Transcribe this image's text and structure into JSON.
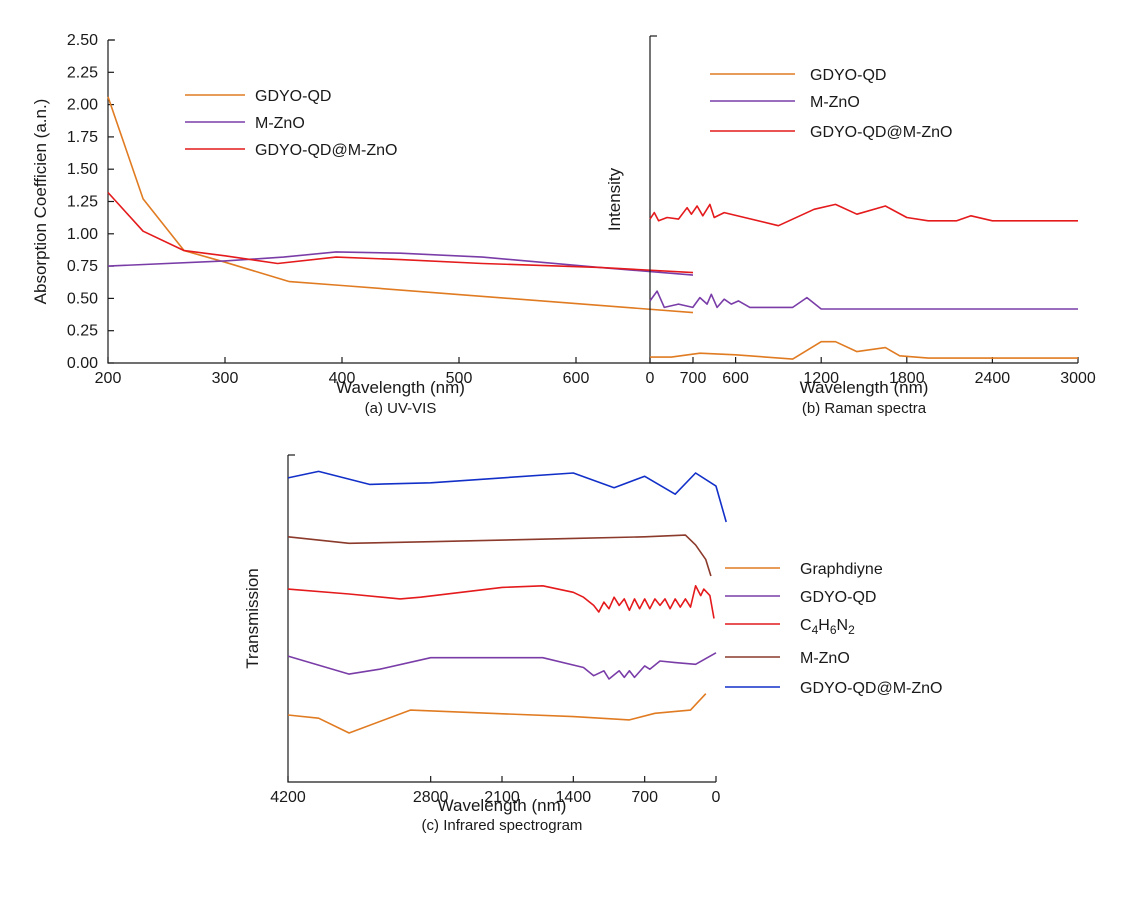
{
  "chart_data": [
    {
      "type": "line",
      "panel": "a",
      "caption": "(a) UV-VIS",
      "title": "",
      "xlabel": "Wavelength (nm)",
      "ylabel": "Absorption Coefficien (a.n.)",
      "xlim": [
        200,
        700
      ],
      "ylim": [
        0,
        2.5
      ],
      "x_ticks": [
        "200",
        "300",
        "400",
        "500",
        "600",
        "700"
      ],
      "y_ticks": [
        "0.00",
        "0.25",
        "0.50",
        "0.75",
        "1.00",
        "1.25",
        "1.50",
        "1.75",
        "2.00",
        "2.25",
        "2.50"
      ],
      "legend_position": "upper-center",
      "series": [
        {
          "name": "GDYO-QD",
          "color": "#e07b22",
          "points": [
            [
              200,
              2.06
            ],
            [
              230,
              1.27
            ],
            [
              265,
              0.87
            ],
            [
              300,
              0.78
            ],
            [
              355,
              0.63
            ],
            [
              400,
              0.6
            ],
            [
              700,
              0.39
            ]
          ]
        },
        {
          "name": "M-ZnO",
          "color": "#7a3da8",
          "points": [
            [
              200,
              0.75
            ],
            [
              300,
              0.79
            ],
            [
              350,
              0.82
            ],
            [
              395,
              0.86
            ],
            [
              450,
              0.85
            ],
            [
              520,
              0.82
            ],
            [
              620,
              0.74
            ],
            [
              700,
              0.68
            ]
          ]
        },
        {
          "name": "GDYO-QD@M-ZnO",
          "color": "#e41a1c",
          "points": [
            [
              200,
              1.32
            ],
            [
              230,
              1.02
            ],
            [
              265,
              0.87
            ],
            [
              300,
              0.83
            ],
            [
              345,
              0.77
            ],
            [
              395,
              0.82
            ],
            [
              450,
              0.8
            ],
            [
              520,
              0.77
            ],
            [
              620,
              0.74
            ],
            [
              700,
              0.7
            ]
          ]
        }
      ]
    },
    {
      "type": "line",
      "panel": "b",
      "caption": "(b) Raman spectra",
      "title": "",
      "xlabel": "Wavelength (nm)",
      "ylabel": "Intensity",
      "xlim": [
        0,
        3000
      ],
      "ylim": [
        0,
        10
      ],
      "x_ticks": [
        "0",
        "600",
        "1200",
        "1800",
        "2400",
        "3000"
      ],
      "legend_position": "upper-center",
      "series": [
        {
          "name": "GDYO-QD",
          "color": "#e07b22",
          "points": [
            [
              0,
              0.18
            ],
            [
              150,
              0.18
            ],
            [
              350,
              0.3
            ],
            [
              600,
              0.25
            ],
            [
              1000,
              0.12
            ],
            [
              1200,
              0.65
            ],
            [
              1300,
              0.65
            ],
            [
              1450,
              0.35
            ],
            [
              1650,
              0.47
            ],
            [
              1750,
              0.22
            ],
            [
              1950,
              0.15
            ],
            [
              3000,
              0.15
            ]
          ]
        },
        {
          "name": "M-ZnO",
          "color": "#7a3da8",
          "points": [
            [
              0,
              1.9
            ],
            [
              50,
              2.2
            ],
            [
              100,
              1.7
            ],
            [
              200,
              1.8
            ],
            [
              300,
              1.7
            ],
            [
              350,
              2.0
            ],
            [
              400,
              1.8
            ],
            [
              430,
              2.1
            ],
            [
              470,
              1.7
            ],
            [
              520,
              1.95
            ],
            [
              570,
              1.8
            ],
            [
              620,
              1.9
            ],
            [
              700,
              1.7
            ],
            [
              800,
              1.7
            ],
            [
              1000,
              1.7
            ],
            [
              1100,
              2.0
            ],
            [
              1200,
              1.65
            ],
            [
              3000,
              1.65
            ]
          ]
        },
        {
          "name": "GDYO-QD@M-ZnO",
          "color": "#e41a1c",
          "points": [
            [
              0,
              4.4
            ],
            [
              30,
              4.6
            ],
            [
              60,
              4.35
            ],
            [
              120,
              4.45
            ],
            [
              200,
              4.4
            ],
            [
              260,
              4.75
            ],
            [
              290,
              4.55
            ],
            [
              330,
              4.8
            ],
            [
              370,
              4.5
            ],
            [
              420,
              4.85
            ],
            [
              450,
              4.45
            ],
            [
              520,
              4.6
            ],
            [
              900,
              4.2
            ],
            [
              1150,
              4.7
            ],
            [
              1300,
              4.85
            ],
            [
              1450,
              4.55
            ],
            [
              1650,
              4.8
            ],
            [
              1800,
              4.45
            ],
            [
              1950,
              4.35
            ],
            [
              2150,
              4.35
            ],
            [
              2250,
              4.5
            ],
            [
              2400,
              4.35
            ],
            [
              3000,
              4.35
            ]
          ]
        }
      ]
    },
    {
      "type": "line",
      "panel": "c",
      "caption": "(c) Infrared spectrogram",
      "title": "",
      "xlabel": "Wavelength (nm)",
      "ylabel": "Transmission",
      "xlim": [
        4200,
        0
      ],
      "ylim": [
        0,
        10
      ],
      "x_ticks": [
        "4200",
        "2800",
        "2100",
        "1400",
        "700",
        "0"
      ],
      "legend_position": "right",
      "series": [
        {
          "name": "Graphdiyne",
          "label_base": "Graphdiyne",
          "label_sub": [],
          "color": "#e07b22",
          "points": [
            [
              4200,
              2.05
            ],
            [
              3900,
              1.95
            ],
            [
              3600,
              1.5
            ],
            [
              3000,
              2.2
            ],
            [
              1400,
              2.0
            ],
            [
              850,
              1.9
            ],
            [
              600,
              2.1
            ],
            [
              250,
              2.2
            ],
            [
              100,
              2.7
            ]
          ]
        },
        {
          "name": "GDYO-QD",
          "label_base": "GDYO-QD",
          "label_sub": [],
          "color": "#7a3da8",
          "points": [
            [
              4200,
              3.85
            ],
            [
              3600,
              3.3
            ],
            [
              3300,
              3.45
            ],
            [
              2800,
              3.8
            ],
            [
              2100,
              3.8
            ],
            [
              1700,
              3.8
            ],
            [
              1300,
              3.5
            ],
            [
              1200,
              3.25
            ],
            [
              1100,
              3.4
            ],
            [
              1050,
              3.15
            ],
            [
              950,
              3.4
            ],
            [
              900,
              3.2
            ],
            [
              850,
              3.4
            ],
            [
              800,
              3.2
            ],
            [
              700,
              3.55
            ],
            [
              650,
              3.45
            ],
            [
              550,
              3.7
            ],
            [
              400,
              3.65
            ],
            [
              200,
              3.6
            ],
            [
              0,
              3.95
            ]
          ]
        },
        {
          "name": "C4H6N2",
          "label_base": "C",
          "label_sub": [
            "4",
            "H",
            "6",
            "N",
            "2"
          ],
          "color": "#e41a1c",
          "points": [
            [
              4200,
              5.9
            ],
            [
              3600,
              5.75
            ],
            [
              3100,
              5.6
            ],
            [
              2900,
              5.65
            ],
            [
              2100,
              5.95
            ],
            [
              1700,
              6.0
            ],
            [
              1400,
              5.8
            ],
            [
              1300,
              5.65
            ],
            [
              1200,
              5.4
            ],
            [
              1150,
              5.2
            ],
            [
              1100,
              5.5
            ],
            [
              1050,
              5.3
            ],
            [
              1000,
              5.65
            ],
            [
              950,
              5.4
            ],
            [
              900,
              5.6
            ],
            [
              850,
              5.25
            ],
            [
              800,
              5.6
            ],
            [
              750,
              5.3
            ],
            [
              700,
              5.6
            ],
            [
              650,
              5.3
            ],
            [
              600,
              5.6
            ],
            [
              550,
              5.4
            ],
            [
              500,
              5.6
            ],
            [
              450,
              5.3
            ],
            [
              400,
              5.6
            ],
            [
              350,
              5.35
            ],
            [
              300,
              5.6
            ],
            [
              250,
              5.35
            ],
            [
              200,
              6.0
            ],
            [
              150,
              5.7
            ],
            [
              120,
              5.9
            ],
            [
              60,
              5.7
            ],
            [
              20,
              5.0
            ]
          ]
        },
        {
          "name": "M-ZnO",
          "label_base": "M-ZnO",
          "label_sub": [],
          "color": "#8b3a2b",
          "points": [
            [
              4200,
              7.5
            ],
            [
              3600,
              7.3
            ],
            [
              2800,
              7.35
            ],
            [
              1400,
              7.45
            ],
            [
              700,
              7.5
            ],
            [
              300,
              7.55
            ],
            [
              200,
              7.25
            ],
            [
              100,
              6.8
            ],
            [
              50,
              6.3
            ]
          ]
        },
        {
          "name": "GDYO-QD@M-ZnO",
          "label_base": "GDYO-QD@M-ZnO",
          "label_sub": [],
          "color": "#1230c8",
          "points": [
            [
              4200,
              9.3
            ],
            [
              3900,
              9.5
            ],
            [
              3400,
              9.1
            ],
            [
              2800,
              9.15
            ],
            [
              1400,
              9.45
            ],
            [
              1000,
              9.0
            ],
            [
              700,
              9.35
            ],
            [
              400,
              8.8
            ],
            [
              200,
              9.45
            ],
            [
              0,
              9.05
            ],
            [
              -100,
              7.95
            ]
          ]
        }
      ]
    }
  ]
}
